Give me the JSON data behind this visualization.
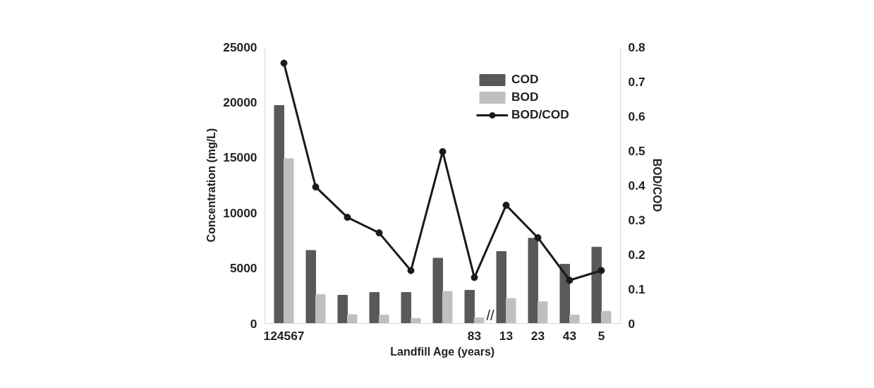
{
  "chart_data": {
    "type": "bar",
    "xlabel": "Landfill Age (years)",
    "ylabel": "Concentration (mg/L)",
    "y2label": "BOD/COD",
    "categories": [
      "124567",
      null,
      null,
      null,
      null,
      null,
      "83",
      "13",
      "23",
      "43",
      "5"
    ],
    "series": [
      {
        "name": "COD",
        "color": "#595959",
        "values": [
          19700,
          6600,
          2550,
          2800,
          2800,
          5900,
          3000,
          6500,
          7700,
          5350,
          6900
        ]
      },
      {
        "name": "BOD",
        "color": "#bfbfbf",
        "values": [
          14900,
          2600,
          800,
          750,
          450,
          2900,
          500,
          2250,
          1950,
          750,
          1100
        ]
      },
      {
        "name": "BOD/COD",
        "type": "line",
        "axis": "y2",
        "color": "#1a1a1a",
        "marker": "circle",
        "values": [
          0.753,
          0.395,
          0.307,
          0.262,
          0.153,
          0.497,
          0.133,
          0.342,
          0.248,
          0.125,
          0.153
        ]
      }
    ],
    "ylim": [
      0,
      25000
    ],
    "yticks": [
      0,
      5000,
      10000,
      15000,
      20000,
      25000
    ],
    "y2lim": [
      0,
      0.8
    ],
    "y2ticks": [
      0,
      0.1,
      0.2,
      0.3,
      0.4,
      0.5,
      0.6,
      0.7,
      0.8
    ],
    "annotations": [
      "//"
    ],
    "legend": "top right",
    "grid": false
  }
}
